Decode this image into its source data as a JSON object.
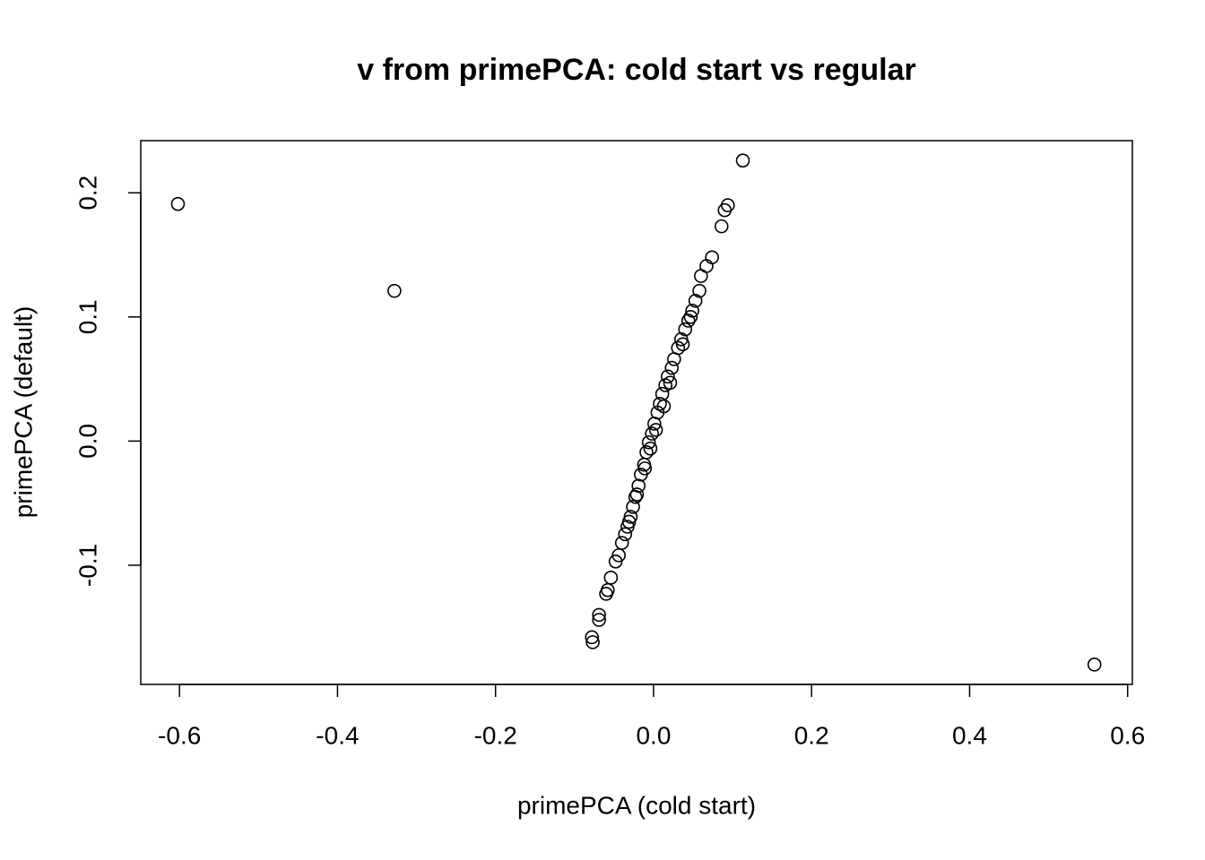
{
  "chart_data": {
    "type": "scatter",
    "title": "v from primePCA: cold start vs regular",
    "x_label": "primePCA (cold start)",
    "y_label": "primePCA (default)",
    "x": [
      -0.602,
      -0.328,
      0.113,
      0.558,
      -0.078,
      -0.077,
      -0.069,
      -0.069,
      -0.06,
      -0.058,
      -0.054,
      -0.048,
      -0.044,
      -0.04,
      -0.036,
      -0.033,
      -0.029,
      -0.026,
      -0.023,
      -0.019,
      -0.016,
      -0.012,
      -0.009,
      -0.006,
      -0.002,
      0.001,
      0.005,
      0.008,
      0.011,
      0.015,
      0.018,
      0.023,
      0.026,
      0.031,
      0.035,
      0.04,
      0.044,
      0.049,
      0.053,
      0.058,
      0.06,
      0.067,
      0.074,
      0.086,
      0.09,
      0.094,
      -0.031,
      -0.021,
      -0.011,
      -0.004,
      0.003,
      0.013,
      0.021,
      0.037,
      0.047
    ],
    "values": [
      0.191,
      0.121,
      0.226,
      -0.18,
      -0.158,
      -0.162,
      -0.14,
      -0.144,
      -0.123,
      -0.12,
      -0.11,
      -0.097,
      -0.092,
      -0.082,
      -0.075,
      -0.069,
      -0.061,
      -0.053,
      -0.045,
      -0.036,
      -0.027,
      -0.019,
      -0.009,
      -0.001,
      0.006,
      0.014,
      0.023,
      0.03,
      0.038,
      0.045,
      0.052,
      0.059,
      0.066,
      0.075,
      0.082,
      0.09,
      0.097,
      0.105,
      0.113,
      0.121,
      0.133,
      0.141,
      0.148,
      0.173,
      0.186,
      0.19,
      -0.065,
      -0.043,
      -0.022,
      -0.006,
      0.009,
      0.028,
      0.047,
      0.078,
      0.1
    ],
    "color": "#000000",
    "xlim": [
      -0.649,
      0.606
    ],
    "ylim": [
      -0.196,
      0.242
    ],
    "xticks": [
      -0.6,
      -0.4,
      -0.2,
      {
        "value": 0,
        "label": "0.0"
      },
      0.2,
      0.4,
      0.6
    ],
    "yticks": [
      -0.1,
      {
        "value": 0,
        "label": "0.0"
      },
      0.1,
      0.2
    ],
    "grid": false
  }
}
